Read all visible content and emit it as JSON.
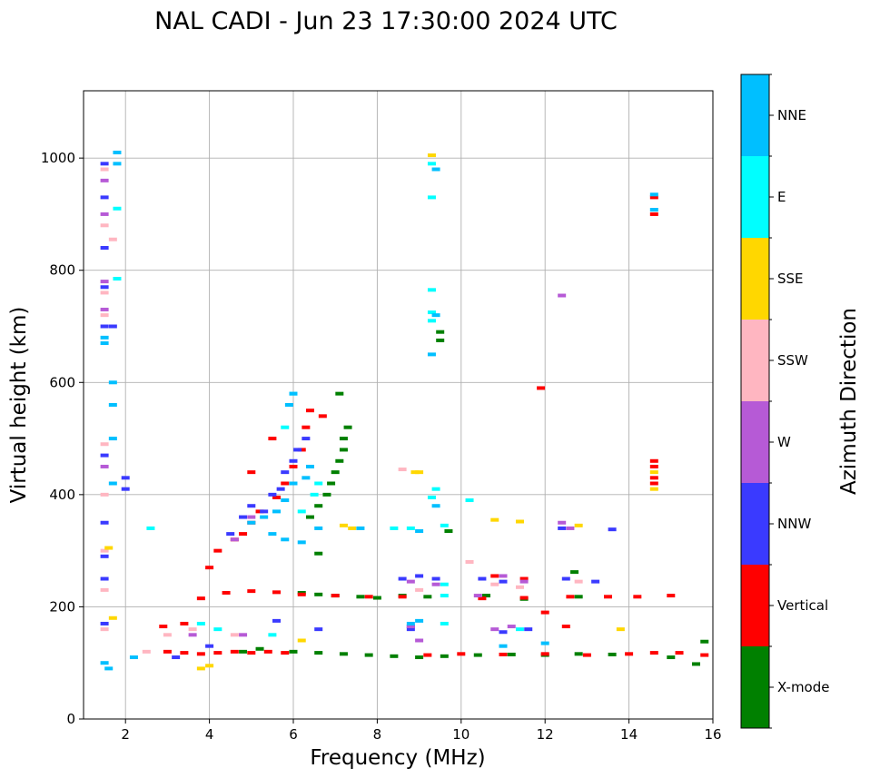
{
  "chart_data": {
    "type": "scatter",
    "title": "NAL CADI - Jun 23 17:30:00 2024 UTC",
    "xlabel": "Frequency (MHz)",
    "ylabel": "Virtual height (km)",
    "xlim": [
      1,
      16
    ],
    "ylim": [
      0,
      1120
    ],
    "xticks": [
      2,
      4,
      6,
      8,
      10,
      12,
      14,
      16
    ],
    "xtick_labels": [
      "2",
      "4",
      "6",
      "8",
      "10",
      "12",
      "14",
      "16"
    ],
    "yticks": [
      0,
      200,
      400,
      600,
      800,
      1000
    ],
    "ytick_labels": [
      "0",
      "200",
      "400",
      "600",
      "800",
      "1000"
    ],
    "grid": true,
    "colorbar": {
      "label": "Azimuth Direction",
      "categories": [
        "X-mode",
        "Vertical",
        "NNW",
        "W",
        "SSW",
        "SSE",
        "E",
        "NNE"
      ],
      "colors": [
        "#008000",
        "#ff0000",
        "#3a3aff",
        "#b65ad6",
        "#ffb6c1",
        "#ffd700",
        "#00ffff",
        "#00bfff"
      ]
    },
    "series": [
      {
        "name": "X-mode",
        "points": [
          [
            6.0,
            120
          ],
          [
            6.6,
            118
          ],
          [
            7.2,
            116
          ],
          [
            7.8,
            114
          ],
          [
            8.4,
            112
          ],
          [
            9.0,
            110
          ],
          [
            9.6,
            112
          ],
          [
            10.4,
            114
          ],
          [
            11.2,
            115
          ],
          [
            12.0,
            114
          ],
          [
            12.8,
            116
          ],
          [
            13.6,
            115
          ],
          [
            15.0,
            110
          ],
          [
            15.6,
            98
          ],
          [
            15.8,
            138
          ],
          [
            6.2,
            225
          ],
          [
            6.6,
            222
          ],
          [
            7.0,
            220
          ],
          [
            7.6,
            218
          ],
          [
            8.0,
            216
          ],
          [
            8.6,
            220
          ],
          [
            9.2,
            218
          ],
          [
            10.6,
            220
          ],
          [
            11.5,
            214
          ],
          [
            12.7,
            262
          ],
          [
            12.8,
            218
          ],
          [
            6.4,
            360
          ],
          [
            6.6,
            380
          ],
          [
            6.8,
            400
          ],
          [
            6.9,
            420
          ],
          [
            7.0,
            440
          ],
          [
            7.1,
            460
          ],
          [
            7.2,
            480
          ],
          [
            7.2,
            500
          ],
          [
            7.3,
            520
          ],
          [
            7.1,
            580
          ],
          [
            9.5,
            690
          ],
          [
            9.5,
            675
          ],
          [
            9.7,
            335
          ],
          [
            6.6,
            295
          ],
          [
            5.2,
            125
          ],
          [
            4.8,
            120
          ]
        ]
      },
      {
        "name": "Vertical",
        "points": [
          [
            3.0,
            120
          ],
          [
            3.4,
            118
          ],
          [
            3.8,
            116
          ],
          [
            4.2,
            118
          ],
          [
            4.6,
            120
          ],
          [
            5.0,
            118
          ],
          [
            5.4,
            120
          ],
          [
            5.8,
            118
          ],
          [
            9.2,
            114
          ],
          [
            10.0,
            116
          ],
          [
            11.0,
            115
          ],
          [
            12.0,
            116
          ],
          [
            13.0,
            114
          ],
          [
            14.0,
            116
          ],
          [
            14.6,
            118
          ],
          [
            15.2,
            118
          ],
          [
            15.8,
            114
          ],
          [
            3.8,
            215
          ],
          [
            4.4,
            225
          ],
          [
            5.0,
            228
          ],
          [
            5.6,
            226
          ],
          [
            6.2,
            222
          ],
          [
            7.0,
            220
          ],
          [
            7.8,
            218
          ],
          [
            8.6,
            218
          ],
          [
            10.5,
            215
          ],
          [
            11.5,
            216
          ],
          [
            12.6,
            218
          ],
          [
            13.5,
            218
          ],
          [
            14.2,
            218
          ],
          [
            15.0,
            220
          ],
          [
            4.0,
            270
          ],
          [
            4.2,
            300
          ],
          [
            4.6,
            320
          ],
          [
            4.8,
            330
          ],
          [
            5.0,
            350
          ],
          [
            5.2,
            370
          ],
          [
            5.6,
            395
          ],
          [
            5.8,
            420
          ],
          [
            6.0,
            450
          ],
          [
            6.2,
            480
          ],
          [
            6.3,
            520
          ],
          [
            6.4,
            550
          ],
          [
            6.7,
            540
          ],
          [
            5.5,
            500
          ],
          [
            5.0,
            440
          ],
          [
            11.9,
            590
          ],
          [
            14.6,
            930
          ],
          [
            14.6,
            900
          ],
          [
            14.6,
            460
          ],
          [
            14.6,
            450
          ],
          [
            14.6,
            430
          ],
          [
            14.6,
            420
          ],
          [
            12.5,
            165
          ],
          [
            10.8,
            255
          ],
          [
            11.5,
            250
          ],
          [
            12.0,
            190
          ],
          [
            2.9,
            165
          ],
          [
            3.4,
            170
          ]
        ]
      },
      {
        "name": "NNW",
        "points": [
          [
            1.5,
            990
          ],
          [
            1.5,
            930
          ],
          [
            1.5,
            840
          ],
          [
            1.5,
            770
          ],
          [
            1.5,
            700
          ],
          [
            1.7,
            700
          ],
          [
            1.5,
            470
          ],
          [
            1.5,
            350
          ],
          [
            1.5,
            290
          ],
          [
            1.5,
            250
          ],
          [
            1.5,
            170
          ],
          [
            2.0,
            430
          ],
          [
            2.0,
            410
          ],
          [
            4.5,
            330
          ],
          [
            4.8,
            360
          ],
          [
            5.0,
            380
          ],
          [
            5.3,
            370
          ],
          [
            5.5,
            400
          ],
          [
            5.7,
            410
          ],
          [
            5.8,
            440
          ],
          [
            6.1,
            480
          ],
          [
            6.3,
            500
          ],
          [
            6.0,
            460
          ],
          [
            8.6,
            250
          ],
          [
            9.0,
            255
          ],
          [
            9.4,
            250
          ],
          [
            10.5,
            250
          ],
          [
            11.0,
            245
          ],
          [
            12.5,
            250
          ],
          [
            13.2,
            245
          ],
          [
            13.6,
            338
          ],
          [
            12.4,
            340
          ],
          [
            11.0,
            155
          ],
          [
            11.6,
            160
          ],
          [
            8.8,
            165
          ],
          [
            8.8,
            160
          ],
          [
            3.2,
            110
          ],
          [
            4.0,
            130
          ],
          [
            5.6,
            175
          ],
          [
            6.6,
            160
          ]
        ]
      },
      {
        "name": "W",
        "points": [
          [
            1.5,
            960
          ],
          [
            1.5,
            900
          ],
          [
            1.5,
            780
          ],
          [
            1.5,
            730
          ],
          [
            1.5,
            450
          ],
          [
            12.4,
            755
          ],
          [
            12.4,
            350
          ],
          [
            12.6,
            340
          ],
          [
            11.0,
            255
          ],
          [
            11.5,
            245
          ],
          [
            10.4,
            220
          ],
          [
            9.4,
            240
          ],
          [
            8.8,
            245
          ],
          [
            5.0,
            360
          ],
          [
            4.6,
            320
          ],
          [
            3.6,
            150
          ],
          [
            4.8,
            150
          ],
          [
            10.8,
            160
          ],
          [
            11.2,
            165
          ],
          [
            9.0,
            140
          ],
          [
            8.8,
            165
          ]
        ]
      },
      {
        "name": "SSW",
        "points": [
          [
            1.5,
            980
          ],
          [
            1.5,
            880
          ],
          [
            1.5,
            760
          ],
          [
            1.5,
            720
          ],
          [
            1.5,
            490
          ],
          [
            1.5,
            400
          ],
          [
            1.5,
            300
          ],
          [
            1.5,
            230
          ],
          [
            1.5,
            160
          ],
          [
            1.7,
            855
          ],
          [
            8.6,
            445
          ],
          [
            10.2,
            280
          ],
          [
            10.8,
            240
          ],
          [
            11.4,
            235
          ],
          [
            12.8,
            245
          ],
          [
            9.0,
            230
          ],
          [
            3.0,
            150
          ],
          [
            3.6,
            160
          ],
          [
            4.6,
            150
          ],
          [
            2.5,
            120
          ]
        ]
      },
      {
        "name": "SSE",
        "points": [
          [
            9.3,
            1005
          ],
          [
            9.0,
            440
          ],
          [
            8.9,
            440
          ],
          [
            7.4,
            340
          ],
          [
            7.2,
            345
          ],
          [
            10.8,
            355
          ],
          [
            11.4,
            352
          ],
          [
            12.8,
            345
          ],
          [
            13.8,
            160
          ],
          [
            14.6,
            410
          ],
          [
            14.6,
            440
          ],
          [
            1.6,
            305
          ],
          [
            1.7,
            180
          ],
          [
            3.8,
            90
          ],
          [
            4.0,
            95
          ],
          [
            6.2,
            140
          ]
        ]
      },
      {
        "name": "E",
        "points": [
          [
            9.3,
            990
          ],
          [
            9.3,
            930
          ],
          [
            9.3,
            765
          ],
          [
            9.3,
            725
          ],
          [
            9.3,
            710
          ],
          [
            1.8,
            910
          ],
          [
            1.8,
            785
          ],
          [
            2.6,
            340
          ],
          [
            6.0,
            580
          ],
          [
            5.8,
            520
          ],
          [
            6.6,
            420
          ],
          [
            6.5,
            400
          ],
          [
            6.2,
            370
          ],
          [
            8.4,
            340
          ],
          [
            8.8,
            340
          ],
          [
            9.6,
            345
          ],
          [
            10.2,
            390
          ],
          [
            9.3,
            395
          ],
          [
            9.4,
            410
          ],
          [
            9.6,
            240
          ],
          [
            9.6,
            220
          ],
          [
            11.4,
            160
          ],
          [
            9.6,
            170
          ],
          [
            3.8,
            170
          ],
          [
            4.2,
            160
          ],
          [
            5.5,
            150
          ]
        ]
      },
      {
        "name": "NNE",
        "points": [
          [
            1.8,
            1010
          ],
          [
            1.8,
            990
          ],
          [
            1.5,
            670
          ],
          [
            1.5,
            680
          ],
          [
            1.7,
            600
          ],
          [
            1.7,
            560
          ],
          [
            1.7,
            500
          ],
          [
            1.7,
            420
          ],
          [
            9.4,
            980
          ],
          [
            9.4,
            720
          ],
          [
            9.3,
            650
          ],
          [
            9.4,
            380
          ],
          [
            9.0,
            335
          ],
          [
            7.6,
            340
          ],
          [
            6.0,
            580
          ],
          [
            5.9,
            560
          ],
          [
            6.4,
            450
          ],
          [
            6.3,
            430
          ],
          [
            6.0,
            420
          ],
          [
            5.8,
            390
          ],
          [
            5.6,
            370
          ],
          [
            5.3,
            360
          ],
          [
            5.0,
            350
          ],
          [
            5.5,
            330
          ],
          [
            5.8,
            320
          ],
          [
            6.2,
            315
          ],
          [
            6.6,
            340
          ],
          [
            14.6,
            935
          ],
          [
            14.6,
            908
          ],
          [
            8.8,
            170
          ],
          [
            9.0,
            175
          ],
          [
            11.0,
            130
          ],
          [
            12.0,
            135
          ],
          [
            1.5,
            100
          ],
          [
            1.6,
            90
          ],
          [
            2.2,
            110
          ]
        ]
      }
    ]
  }
}
